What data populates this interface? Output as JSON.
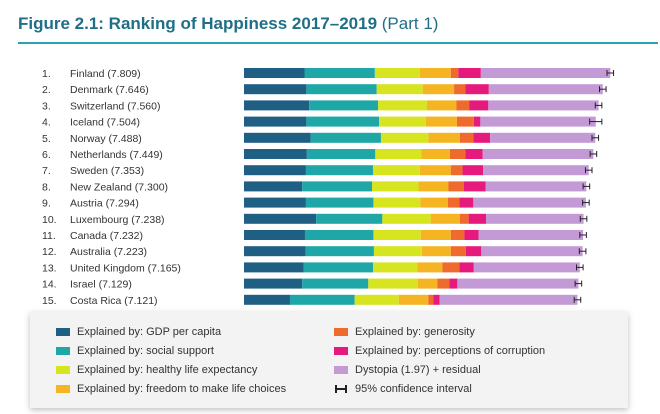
{
  "figure": {
    "title_main": "Figure 2.1: Ranking of Happiness 2017–2019",
    "title_part": "(Part 1)"
  },
  "colors": {
    "gdp": "#1f5f83",
    "social": "#1fa6a6",
    "health": "#d6e51f",
    "freedom": "#f5b522",
    "generosity": "#ef6a2d",
    "corruption": "#e6197d",
    "dystopia": "#c39ad6",
    "ci": "#222222",
    "title": "#1f6f86"
  },
  "legend": {
    "gdp": "Explained by: GDP per capita",
    "social": "Explained by: social support",
    "health": "Explained by: healthy life expectancy",
    "freedom": "Explained by: freedom to make life choices",
    "generosity": "Explained by: generosity",
    "corruption": "Explained by: perceptions of corruption",
    "dystopia": "Dystopia (1.97) + residual",
    "ci": "95% confidence interval"
  },
  "chart_data": {
    "type": "bar",
    "orientation": "horizontal",
    "stacked": true,
    "series_keys": [
      "gdp",
      "social",
      "health",
      "freedom",
      "generosity",
      "corruption",
      "dystopia"
    ],
    "rows": [
      {
        "rank": "1.",
        "label": "Finland (7.809)",
        "values": [
          1.29,
          1.5,
          0.96,
          0.66,
          0.16,
          0.48,
          2.76
        ],
        "ci": 0.07
      },
      {
        "rank": "2.",
        "label": "Denmark (7.646)",
        "values": [
          1.33,
          1.5,
          0.98,
          0.67,
          0.24,
          0.5,
          2.43
        ],
        "ci": 0.07
      },
      {
        "rank": "3.",
        "label": "Switzerland (7.560)",
        "values": [
          1.39,
          1.47,
          1.04,
          0.63,
          0.27,
          0.41,
          2.35
        ],
        "ci": 0.07
      },
      {
        "rank": "4.",
        "label": "Iceland (7.504)",
        "values": [
          1.33,
          1.55,
          1.0,
          0.66,
          0.36,
          0.14,
          2.46
        ],
        "ci": 0.13
      },
      {
        "rank": "5.",
        "label": "Norway (7.488)",
        "values": [
          1.42,
          1.5,
          1.01,
          0.67,
          0.29,
          0.36,
          2.24
        ],
        "ci": 0.07
      },
      {
        "rank": "6.",
        "label": "Netherlands (7.449)",
        "values": [
          1.34,
          1.46,
          0.98,
          0.61,
          0.33,
          0.37,
          2.36
        ],
        "ci": 0.07
      },
      {
        "rank": "7.",
        "label": "Sweden (7.353)",
        "values": [
          1.32,
          1.43,
          1.0,
          0.66,
          0.25,
          0.44,
          2.25
        ],
        "ci": 0.07
      },
      {
        "rank": "8.",
        "label": "New Zealand (7.300)",
        "values": [
          1.24,
          1.49,
          0.99,
          0.64,
          0.33,
          0.46,
          2.15
        ],
        "ci": 0.07
      },
      {
        "rank": "9.",
        "label": "Austria (7.294)",
        "values": [
          1.32,
          1.44,
          1.0,
          0.59,
          0.24,
          0.3,
          2.4
        ],
        "ci": 0.07
      },
      {
        "rank": "10.",
        "label": "Luxembourg (7.238)",
        "values": [
          1.54,
          1.41,
          1.03,
          0.62,
          0.19,
          0.37,
          2.08
        ],
        "ci": 0.07
      },
      {
        "rank": "11.",
        "label": "Canada (7.232)",
        "values": [
          1.3,
          1.46,
          1.01,
          0.64,
          0.29,
          0.3,
          2.23
        ],
        "ci": 0.07
      },
      {
        "rank": "12.",
        "label": "Australia (7.223)",
        "values": [
          1.31,
          1.46,
          1.02,
          0.62,
          0.32,
          0.33,
          2.16
        ],
        "ci": 0.07
      },
      {
        "rank": "13.",
        "label": "United Kingdom (7.165)",
        "values": [
          1.27,
          1.48,
          0.95,
          0.53,
          0.36,
          0.31,
          2.26
        ],
        "ci": 0.07
      },
      {
        "rank": "14.",
        "label": "Israel (7.129)",
        "values": [
          1.24,
          1.41,
          1.06,
          0.41,
          0.26,
          0.17,
          2.58
        ],
        "ci": 0.07
      },
      {
        "rank": "15.",
        "label": "Costa Rica (7.121)",
        "values": [
          0.98,
          1.38,
          0.94,
          0.63,
          0.11,
          0.13,
          2.94
        ],
        "ci": 0.07
      }
    ]
  }
}
